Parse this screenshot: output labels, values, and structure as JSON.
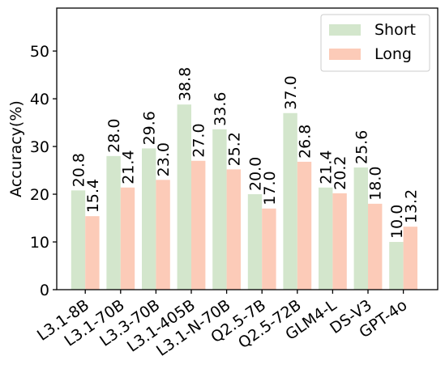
{
  "chart_data": {
    "type": "bar",
    "categories": [
      "L3.1-8B",
      "L3.1-70B",
      "L3.3-70B",
      "L3.1-405B",
      "L3.1-N-70B",
      "Q2.5-7B",
      "Q2.5-72B",
      "GLM4-L",
      "DS-V3",
      "GPT-4o"
    ],
    "series": [
      {
        "name": "Short",
        "values": [
          20.8,
          28.0,
          29.6,
          38.8,
          33.6,
          20.0,
          37.0,
          21.4,
          25.6,
          10.0
        ],
        "color": "#d3e6cc"
      },
      {
        "name": "Long",
        "values": [
          15.4,
          21.4,
          23.0,
          27.0,
          25.2,
          17.0,
          26.8,
          20.2,
          18.0,
          13.2
        ],
        "color": "#fccbb8"
      }
    ],
    "data_labels": [
      [
        "20.8",
        "28.0",
        "29.6",
        "38.8",
        "33.6",
        "20.0",
        "37.0",
        "21.4",
        "25.6",
        "10.0"
      ],
      [
        "15.4",
        "21.4",
        "23.0",
        "27.0",
        "25.2",
        "17.0",
        "26.8",
        "20.2",
        "18.0",
        "13.2"
      ]
    ],
    "ylabel": "Accuracy(%)",
    "ylim": [
      0,
      59
    ],
    "yticks": [
      0,
      10,
      20,
      30,
      40,
      50
    ],
    "ytick_labels": [
      "0",
      "10",
      "20",
      "30",
      "40",
      "50"
    ],
    "grid": false,
    "legend": "top-right"
  }
}
